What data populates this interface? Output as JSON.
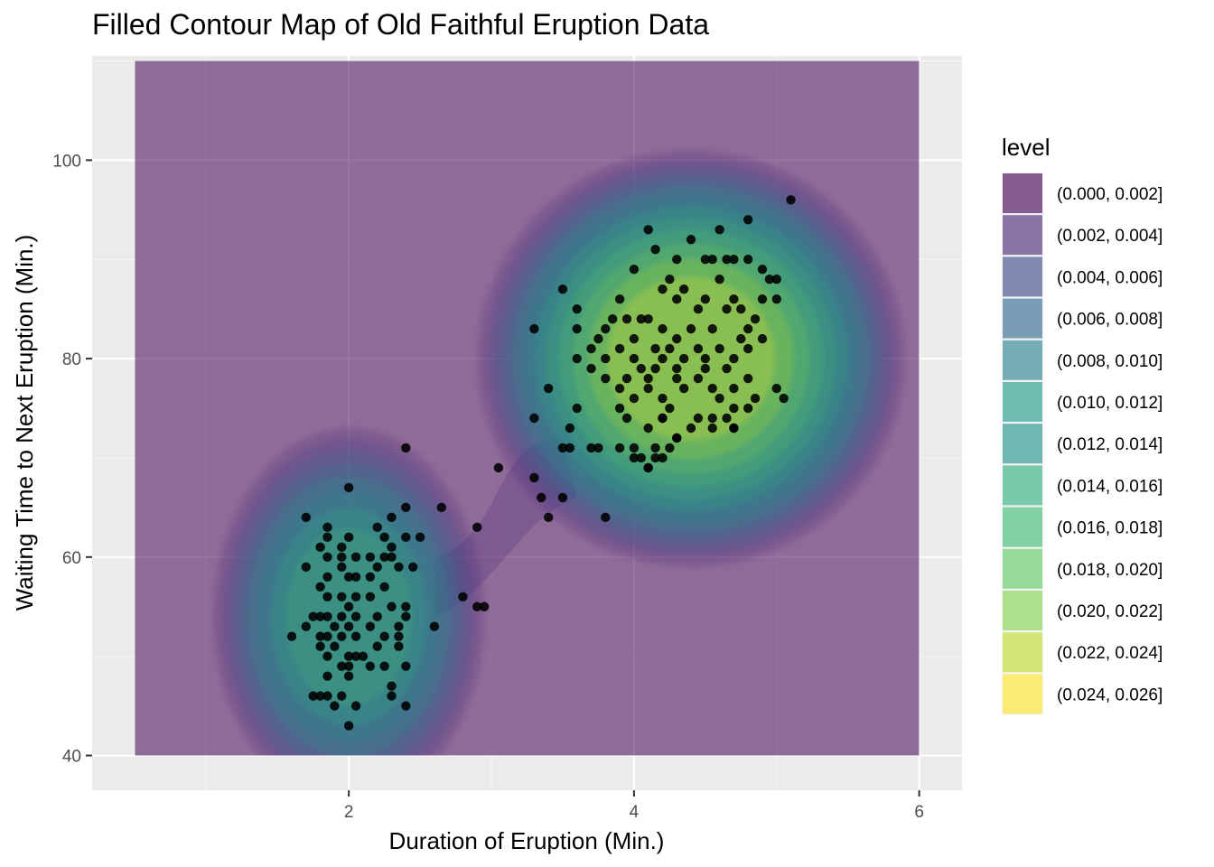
{
  "chart_data": {
    "type": "contour",
    "title": "Filled Contour Map of Old Faithful Eruption Data",
    "xlabel": "Duration of Eruption (Min.)",
    "ylabel": "Waiting Time to Next Eruption (Min.)",
    "xlim": [
      0.2,
      6.3
    ],
    "ylim": [
      36.5,
      110.5
    ],
    "fill_extent": {
      "x": [
        0.5,
        6.0
      ],
      "y": [
        40,
        110
      ]
    },
    "xticks": [
      2,
      4,
      6
    ],
    "yticks": [
      40,
      60,
      80,
      100
    ],
    "grid": true,
    "legend": {
      "title": "level",
      "position": "right",
      "entries": [
        {
          "label": "(0.000, 0.002]",
          "color": "#440154"
        },
        {
          "label": "(0.002, 0.004]",
          "color": "#482878"
        },
        {
          "label": "(0.004, 0.006]",
          "color": "#3E4A89"
        },
        {
          "label": "(0.006, 0.008]",
          "color": "#31688E"
        },
        {
          "label": "(0.008, 0.010]",
          "color": "#26838F"
        },
        {
          "label": "(0.010, 0.012]",
          "color": "#1F9D8A"
        },
        {
          "label": "(0.012, 0.014]",
          "color": "#21918C"
        },
        {
          "label": "(0.014, 0.016]",
          "color": "#2DB27D"
        },
        {
          "label": "(0.016, 0.018]",
          "color": "#3FBC73"
        },
        {
          "label": "(0.018, 0.020]",
          "color": "#5EC962"
        },
        {
          "label": "(0.020, 0.022]",
          "color": "#84D44B"
        },
        {
          "label": "(0.022, 0.024]",
          "color": "#BDDF26"
        },
        {
          "label": "(0.024, 0.026]",
          "color": "#FDE725"
        }
      ]
    },
    "density_modes": [
      {
        "x": 2.0,
        "y": 54,
        "peak_level": 0.018
      },
      {
        "x": 4.4,
        "y": 80,
        "peak_level": 0.025
      }
    ],
    "points": [
      [
        5.1,
        96
      ],
      [
        4.8,
        94
      ],
      [
        4.1,
        93
      ],
      [
        4.6,
        93
      ],
      [
        4.4,
        92
      ],
      [
        4.15,
        91
      ],
      [
        4.3,
        90
      ],
      [
        4.5,
        90
      ],
      [
        4.55,
        90
      ],
      [
        4.65,
        90
      ],
      [
        4.7,
        90
      ],
      [
        4.8,
        90
      ],
      [
        4.9,
        89
      ],
      [
        3.5,
        87
      ],
      [
        4.0,
        89
      ],
      [
        4.95,
        88
      ],
      [
        5.0,
        88
      ],
      [
        4.25,
        88
      ],
      [
        4.6,
        88
      ],
      [
        4.2,
        87
      ],
      [
        4.35,
        87
      ],
      [
        4.5,
        86
      ],
      [
        3.6,
        85
      ],
      [
        3.9,
        86
      ],
      [
        4.7,
        86
      ],
      [
        4.9,
        86
      ],
      [
        4.3,
        86
      ],
      [
        4.45,
        85
      ],
      [
        4.65,
        85
      ],
      [
        4.75,
        85
      ],
      [
        5.0,
        86
      ],
      [
        3.3,
        83
      ],
      [
        3.6,
        83
      ],
      [
        3.7,
        81
      ],
      [
        3.75,
        82
      ],
      [
        3.85,
        84
      ],
      [
        3.95,
        84
      ],
      [
        4.05,
        84
      ],
      [
        4.1,
        84
      ],
      [
        4.2,
        83
      ],
      [
        4.3,
        82
      ],
      [
        4.4,
        83
      ],
      [
        4.55,
        83
      ],
      [
        4.8,
        83
      ],
      [
        4.85,
        84
      ],
      [
        4.9,
        82
      ],
      [
        3.8,
        83
      ],
      [
        4.0,
        82
      ],
      [
        4.15,
        81
      ],
      [
        3.6,
        80
      ],
      [
        3.7,
        79
      ],
      [
        3.8,
        80
      ],
      [
        3.9,
        81
      ],
      [
        4.0,
        80
      ],
      [
        4.05,
        79
      ],
      [
        4.1,
        78
      ],
      [
        4.2,
        80
      ],
      [
        4.25,
        81
      ],
      [
        4.35,
        80
      ],
      [
        4.45,
        81
      ],
      [
        4.5,
        80
      ],
      [
        4.6,
        81
      ],
      [
        4.7,
        80
      ],
      [
        4.75,
        82
      ],
      [
        4.8,
        81
      ],
      [
        4.5,
        79
      ],
      [
        4.65,
        79
      ],
      [
        4.3,
        79
      ],
      [
        4.15,
        79
      ],
      [
        3.95,
        78
      ],
      [
        3.4,
        77
      ],
      [
        3.8,
        78
      ],
      [
        3.9,
        77
      ],
      [
        4.0,
        76
      ],
      [
        4.1,
        77
      ],
      [
        4.2,
        76
      ],
      [
        4.3,
        78
      ],
      [
        4.35,
        77
      ],
      [
        4.45,
        78
      ],
      [
        4.55,
        77
      ],
      [
        4.6,
        76
      ],
      [
        4.7,
        77
      ],
      [
        4.8,
        78
      ],
      [
        4.85,
        76
      ],
      [
        5.0,
        77
      ],
      [
        5.05,
        76
      ],
      [
        3.9,
        75
      ],
      [
        4.25,
        75
      ],
      [
        4.7,
        75
      ],
      [
        4.8,
        75
      ],
      [
        3.3,
        74
      ],
      [
        3.6,
        75
      ],
      [
        4.1,
        73
      ],
      [
        4.2,
        74
      ],
      [
        4.45,
        74
      ],
      [
        4.55,
        73
      ],
      [
        4.65,
        74
      ],
      [
        4.4,
        73
      ],
      [
        4.55,
        74
      ],
      [
        4.7,
        73
      ],
      [
        4.7,
        73
      ],
      [
        3.55,
        73
      ],
      [
        3.55,
        71
      ],
      [
        3.75,
        71
      ],
      [
        4.0,
        71
      ],
      [
        4.05,
        70
      ],
      [
        4.1,
        69
      ],
      [
        4.15,
        70
      ],
      [
        4.0,
        70
      ],
      [
        4.3,
        72
      ],
      [
        4.25,
        71
      ],
      [
        2.4,
        71
      ],
      [
        3.05,
        69
      ],
      [
        3.3,
        68
      ],
      [
        2.0,
        67
      ],
      [
        3.35,
        66
      ],
      [
        3.5,
        66
      ],
      [
        1.7,
        64
      ],
      [
        2.3,
        64
      ],
      [
        2.4,
        65
      ],
      [
        2.65,
        65
      ],
      [
        3.4,
        64
      ],
      [
        3.8,
        64
      ],
      [
        2.9,
        63
      ],
      [
        2.2,
        63
      ],
      [
        1.85,
        63
      ],
      [
        1.85,
        62
      ],
      [
        2.0,
        62
      ],
      [
        2.25,
        62
      ],
      [
        2.4,
        62
      ],
      [
        2.5,
        62
      ],
      [
        1.8,
        61
      ],
      [
        1.95,
        61
      ],
      [
        2.3,
        61
      ],
      [
        1.7,
        59
      ],
      [
        1.85,
        60
      ],
      [
        1.95,
        60
      ],
      [
        2.05,
        60
      ],
      [
        2.15,
        60
      ],
      [
        2.2,
        59
      ],
      [
        2.25,
        60
      ],
      [
        2.3,
        60
      ],
      [
        2.35,
        59
      ],
      [
        2.45,
        59
      ],
      [
        1.85,
        58
      ],
      [
        1.95,
        59
      ],
      [
        2.0,
        58
      ],
      [
        2.05,
        58
      ],
      [
        2.15,
        58
      ],
      [
        2.25,
        57
      ],
      [
        1.8,
        57
      ],
      [
        1.85,
        56
      ],
      [
        1.95,
        56
      ],
      [
        2.05,
        56
      ],
      [
        2.15,
        56
      ],
      [
        2.3,
        55
      ],
      [
        2.4,
        55
      ],
      [
        2.0,
        55
      ],
      [
        1.75,
        54
      ],
      [
        1.8,
        54
      ],
      [
        1.85,
        54
      ],
      [
        1.95,
        54
      ],
      [
        2.05,
        54
      ],
      [
        2.2,
        54
      ],
      [
        2.4,
        54
      ],
      [
        1.7,
        53
      ],
      [
        1.8,
        52
      ],
      [
        1.9,
        53
      ],
      [
        2.0,
        53
      ],
      [
        2.15,
        53
      ],
      [
        2.25,
        52
      ],
      [
        2.35,
        53
      ],
      [
        2.6,
        53
      ],
      [
        1.6,
        52
      ],
      [
        1.85,
        52
      ],
      [
        1.95,
        52
      ],
      [
        2.05,
        52
      ],
      [
        2.2,
        51
      ],
      [
        2.35,
        52
      ],
      [
        1.8,
        51
      ],
      [
        1.9,
        51
      ],
      [
        2.0,
        50
      ],
      [
        2.1,
        50
      ],
      [
        2.35,
        51
      ],
      [
        1.85,
        50
      ],
      [
        1.95,
        49
      ],
      [
        2.0,
        49
      ],
      [
        2.05,
        50
      ],
      [
        2.15,
        49
      ],
      [
        2.25,
        49
      ],
      [
        2.4,
        49
      ],
      [
        2.0,
        48
      ],
      [
        1.85,
        48
      ],
      [
        2.3,
        47
      ],
      [
        1.75,
        46
      ],
      [
        1.8,
        46
      ],
      [
        1.85,
        46
      ],
      [
        1.95,
        46
      ],
      [
        2.3,
        46
      ],
      [
        2.05,
        45
      ],
      [
        2.4,
        45
      ],
      [
        1.9,
        45
      ],
      [
        2.0,
        43
      ],
      [
        2.8,
        56
      ],
      [
        2.9,
        55
      ],
      [
        2.95,
        55
      ],
      [
        3.5,
        71
      ],
      [
        4.15,
        71
      ],
      [
        4.1,
        69
      ],
      [
        4.2,
        70
      ],
      [
        3.9,
        71
      ],
      [
        3.7,
        71
      ],
      [
        4.3,
        72
      ],
      [
        4.2,
        74
      ],
      [
        3.95,
        74
      ]
    ]
  }
}
